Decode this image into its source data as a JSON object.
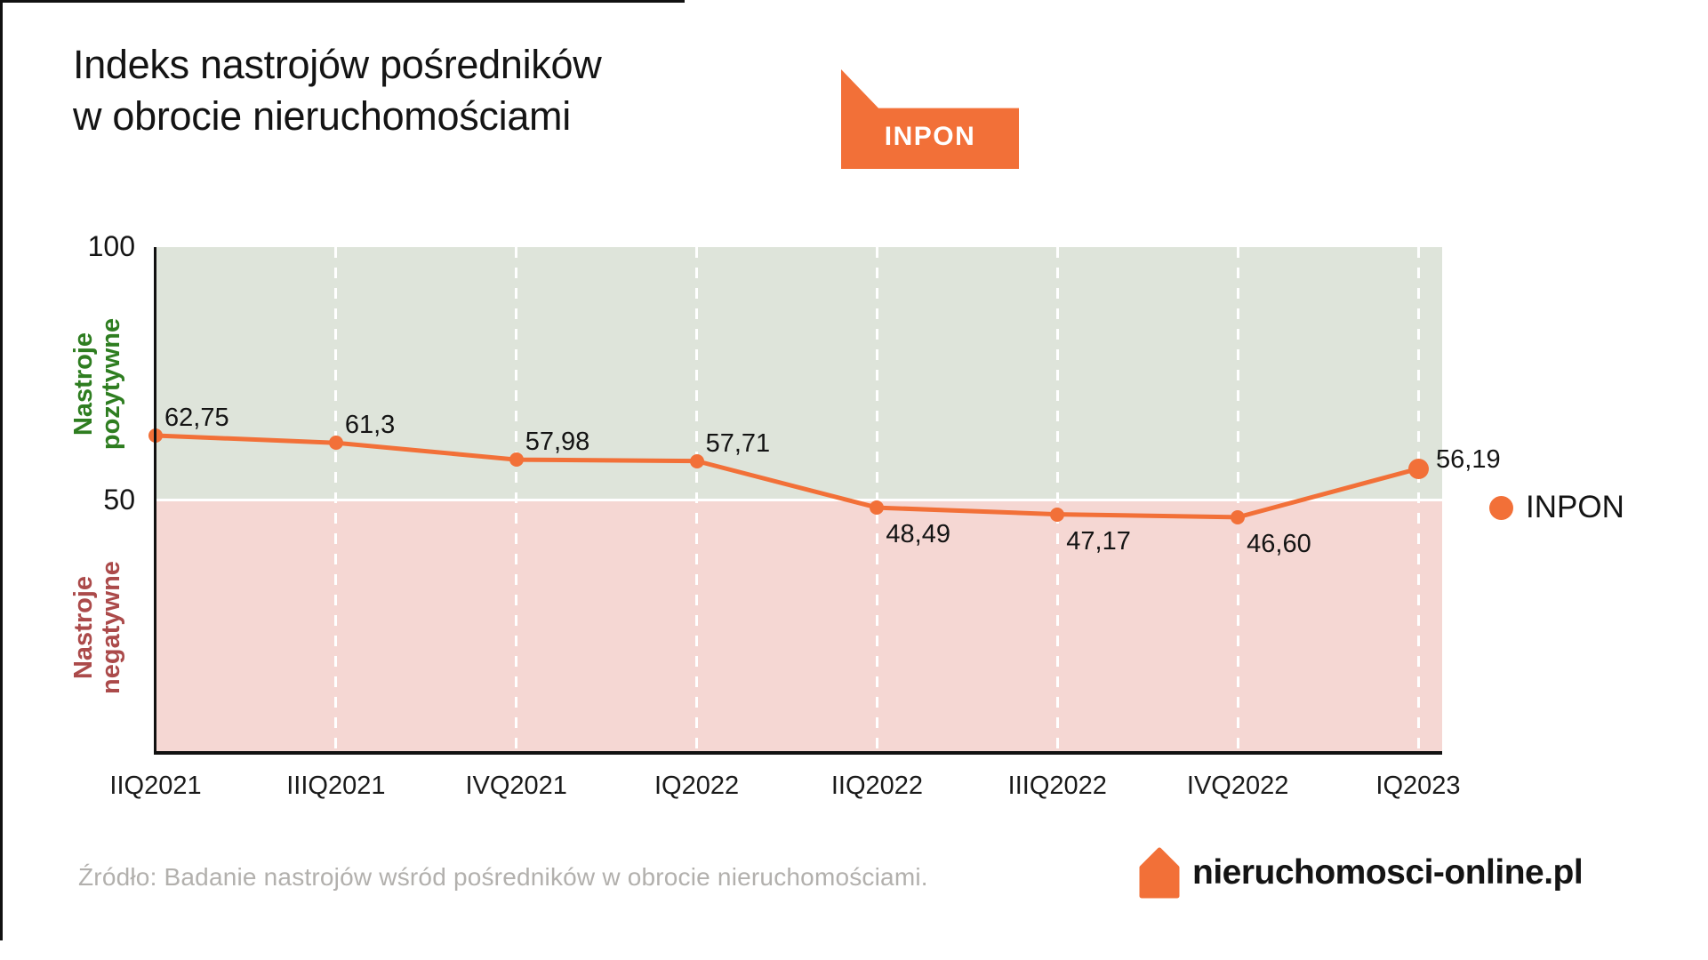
{
  "title": {
    "line1": "Indeks nastrojów pośredników",
    "line2": "w obrocie nieruchomościami"
  },
  "badge": {
    "label": "INPON"
  },
  "regions": {
    "positive": {
      "label": "Nastroje\npozytywne",
      "text_color": "#2e7d20",
      "fill": "#dee4da"
    },
    "negative": {
      "label": "Nastroje\nnegatywne",
      "text_color": "#ab4a4a",
      "fill": "#f5d7d3"
    }
  },
  "legend": {
    "label": "INPON",
    "dot_color": "#f27038"
  },
  "footer": {
    "source": "Źródło: Badanie nastrojów wśród pośredników w obrocie nieruchomościami.",
    "brand": "nieruchomosci-online.pl",
    "brand_color": "#f27038"
  },
  "chart_data": {
    "type": "line",
    "title": "Indeks nastrojów pośredników w obrocie nieruchomościami (INPON)",
    "categories": [
      "IIQ2021",
      "IIIQ2021",
      "IVQ2021",
      "IQ2022",
      "IIQ2022",
      "IIIQ2022",
      "IVQ2022",
      "IQ2023"
    ],
    "series": [
      {
        "name": "INPON",
        "values": [
          62.75,
          61.3,
          57.98,
          57.71,
          48.49,
          47.17,
          46.6,
          56.19
        ]
      }
    ],
    "value_labels": [
      "62,75",
      "61,3",
      "57,98",
      "57,71",
      "48,49",
      "47,17",
      "46,60",
      "56,19"
    ],
    "ylim": [
      0,
      100
    ],
    "y_ticks": [
      {
        "label": "100",
        "value": 100
      },
      {
        "label": "50",
        "value": 50
      }
    ],
    "threshold": 50,
    "line_color": "#f27038",
    "grid": "dashed-vertical-white",
    "legend_position": "right",
    "positive_region": "Nastroje pozytywne",
    "negative_region": "Nastroje negatywne"
  }
}
